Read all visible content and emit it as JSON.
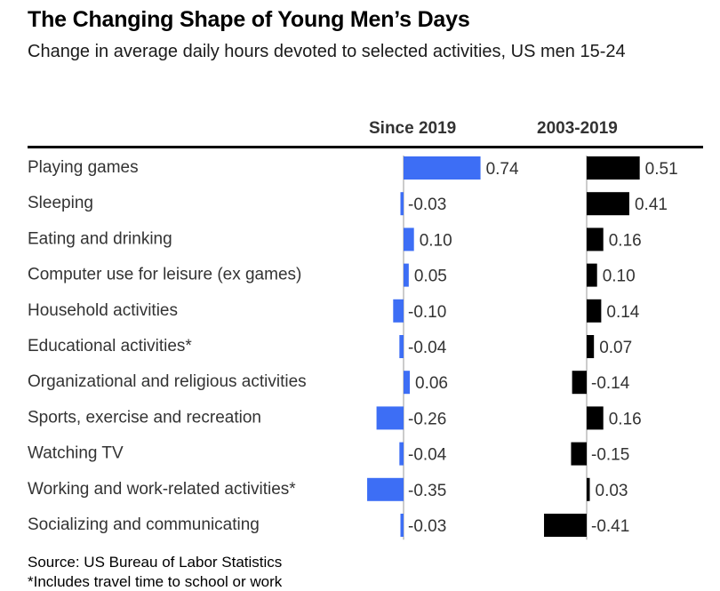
{
  "header": {
    "title": "The Changing Shape of Young Men’s Days",
    "subtitle": "Change in average daily hours devoted to selected activities, US men 15-24"
  },
  "footer": {
    "source": "Source: US Bureau of Labor Statistics",
    "note": "*Includes travel time to school or work"
  },
  "chart_data": {
    "type": "bar",
    "orientation": "horizontal",
    "categories": [
      "Playing games",
      "Sleeping",
      "Eating and drinking",
      "Computer use for leisure (ex games)",
      "Household activities",
      "Educational activities*",
      "Organizational and religious activities",
      "Sports, exercise and recreation",
      "Watching TV",
      "Working and work-related activities*",
      "Socializing and communicating"
    ],
    "series": [
      {
        "name": "Since 2019",
        "color": "#3d6ef5",
        "values": [
          0.74,
          -0.03,
          0.1,
          0.05,
          -0.1,
          -0.04,
          0.06,
          -0.26,
          -0.04,
          -0.35,
          -0.03
        ],
        "labels": [
          "0.74",
          "-0.03",
          "0.10",
          "0.05",
          "-0.10",
          "-0.04",
          "0.06",
          "-0.26",
          "-0.04",
          "-0.35",
          "-0.03"
        ]
      },
      {
        "name": "2003-2019",
        "color": "#000000",
        "values": [
          0.51,
          0.41,
          0.16,
          0.1,
          0.14,
          0.07,
          -0.14,
          0.16,
          -0.15,
          0.03,
          -0.41
        ],
        "labels": [
          "0.51",
          "0.41",
          "0.16",
          "0.10",
          "0.14",
          "0.07",
          "-0.14",
          "0.16",
          "-0.15",
          "0.03",
          "-0.41"
        ]
      }
    ],
    "grid": false,
    "legend": "column headers above each panel"
  }
}
